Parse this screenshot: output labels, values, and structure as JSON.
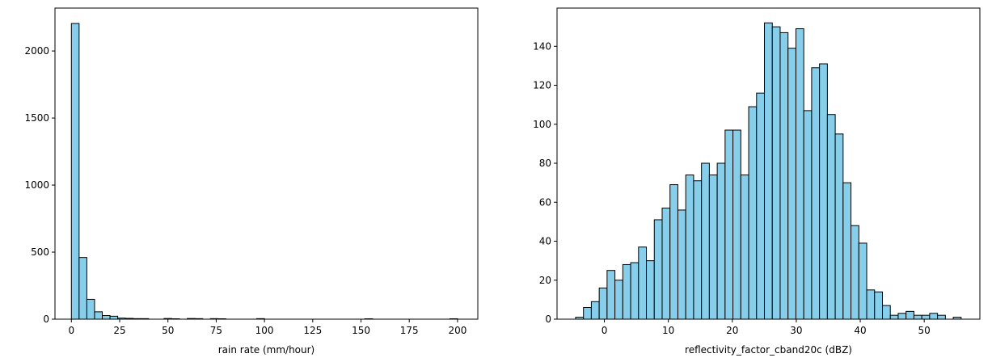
{
  "style": {
    "bar_fill": "#87CEEB",
    "bar_edge": "#000000",
    "background": "#ffffff"
  },
  "chart_data": [
    {
      "type": "bar",
      "xlabel": "rain rate (mm/hour)",
      "ylabel": "",
      "xlim": [
        -8.5,
        210.5
      ],
      "ylim": [
        0,
        2320
      ],
      "xticks": [
        0,
        25,
        50,
        75,
        100,
        125,
        150,
        175,
        200
      ],
      "yticks": [
        0,
        500,
        1000,
        1500,
        2000
      ],
      "grid": false,
      "bin_edges": [
        0,
        4,
        8,
        12,
        16,
        20,
        24,
        28,
        32,
        36,
        40,
        44,
        48,
        52,
        56,
        60,
        64,
        68,
        72,
        76,
        80,
        84,
        88,
        92,
        96,
        100,
        104,
        108,
        112,
        116,
        120,
        124,
        128,
        132,
        136,
        140,
        144,
        148,
        152,
        156,
        160,
        164,
        168,
        172,
        176,
        180,
        184,
        188,
        192,
        196,
        200
      ],
      "values": [
        2205,
        460,
        148,
        55,
        27,
        22,
        8,
        6,
        4,
        4,
        0,
        0,
        5,
        3,
        0,
        5,
        4,
        0,
        4,
        3,
        0,
        0,
        0,
        0,
        4,
        0,
        0,
        0,
        0,
        0,
        0,
        0,
        0,
        0,
        0,
        0,
        0,
        0,
        3,
        0,
        0,
        0,
        0,
        0,
        0,
        0,
        0,
        0,
        0,
        3
      ]
    },
    {
      "type": "bar",
      "xlabel": "reflectivity_factor_cband20c (dBZ)",
      "ylabel": "",
      "xlim": [
        -7.4,
        58.7
      ],
      "ylim": [
        0,
        159.6
      ],
      "xticks": [
        0,
        10,
        20,
        30,
        40,
        50
      ],
      "yticks": [
        0,
        20,
        40,
        60,
        80,
        100,
        120,
        140
      ],
      "grid": false,
      "bin_edges": [
        -4.5,
        -3.27,
        -2.04,
        -0.81,
        0.42,
        1.65,
        2.88,
        4.11,
        5.34,
        6.57,
        7.8,
        9.03,
        10.26,
        11.49,
        12.72,
        13.95,
        15.18,
        16.41,
        17.64,
        18.87,
        20.1,
        21.33,
        22.56,
        23.79,
        25.02,
        26.25,
        27.48,
        28.71,
        29.94,
        31.17,
        32.4,
        33.63,
        34.86,
        36.09,
        37.32,
        38.55,
        39.78,
        41.01,
        42.24,
        43.47,
        44.7,
        45.93,
        47.16,
        48.39,
        49.62,
        50.85,
        52.08,
        53.31,
        54.54,
        55.77,
        57.0
      ],
      "values": [
        1,
        6,
        9,
        16,
        25,
        20,
        28,
        29,
        37,
        30,
        51,
        57,
        69,
        56,
        74,
        71,
        80,
        74,
        80,
        97,
        97,
        74,
        109,
        116,
        152,
        150,
        147,
        139,
        149,
        107,
        129,
        131,
        105,
        95,
        70,
        48,
        39,
        15,
        14,
        7,
        2,
        3,
        4,
        2,
        2,
        3,
        2,
        0,
        1,
        0
      ]
    }
  ]
}
